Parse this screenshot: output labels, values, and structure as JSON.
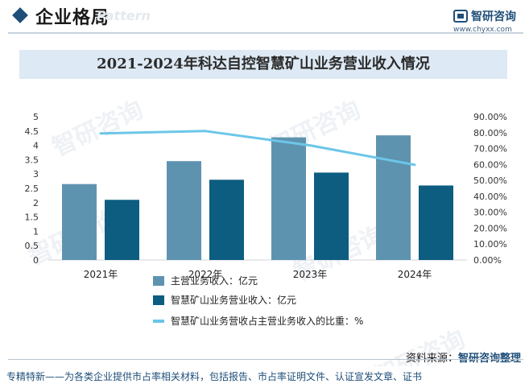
{
  "header": {
    "section_title": "企业格局",
    "section_ghost": "Pattern",
    "brand_name": "智研咨询",
    "brand_url": "www.chyxx.com"
  },
  "colors": {
    "main_revenue": "#5e93b0",
    "smart_mining_revenue": "#0c5d80",
    "ratio_line": "#6cc6e8",
    "brand": "#1f4e79"
  },
  "chart_data": {
    "type": "bar",
    "title": "2021-2024年科达自控智慧矿山业务营业收入情况",
    "categories": [
      "2021年",
      "2022年",
      "2023年",
      "2024年"
    ],
    "series": [
      {
        "name": "主营业务收入：亿元",
        "kind": "bar",
        "axis": "left",
        "values": [
          2.65,
          3.45,
          4.28,
          4.35
        ]
      },
      {
        "name": "智慧矿山业务营业收入：亿元",
        "kind": "bar",
        "axis": "left",
        "values": [
          2.1,
          2.8,
          3.05,
          2.6
        ]
      },
      {
        "name": "智慧矿山业务营收占主营业务收入的比重：%",
        "kind": "line",
        "axis": "right",
        "values": [
          79.5,
          81.0,
          72.0,
          59.8
        ]
      }
    ],
    "left_axis": {
      "ylim": [
        0,
        5
      ],
      "ticks": [
        "0",
        "0.5",
        "1",
        "1.5",
        "2",
        "2.5",
        "3",
        "3.5",
        "4",
        "4.5",
        "5"
      ]
    },
    "right_axis": {
      "ylim": [
        0,
        90
      ],
      "ticks": [
        "0.00%",
        "10.00%",
        "20.00%",
        "30.00%",
        "40.00%",
        "50.00%",
        "60.00%",
        "70.00%",
        "80.00%",
        "90.00%"
      ]
    },
    "legend_position": "bottom"
  },
  "source": {
    "label": "资料来源：",
    "brand": "智研咨询整理"
  },
  "footer": {
    "text": "专精特新——为各类企业提供市占率相关材料，包括报告、市占率证明文件、认证宣发文章、证书"
  },
  "watermark_text": "智研咨询"
}
